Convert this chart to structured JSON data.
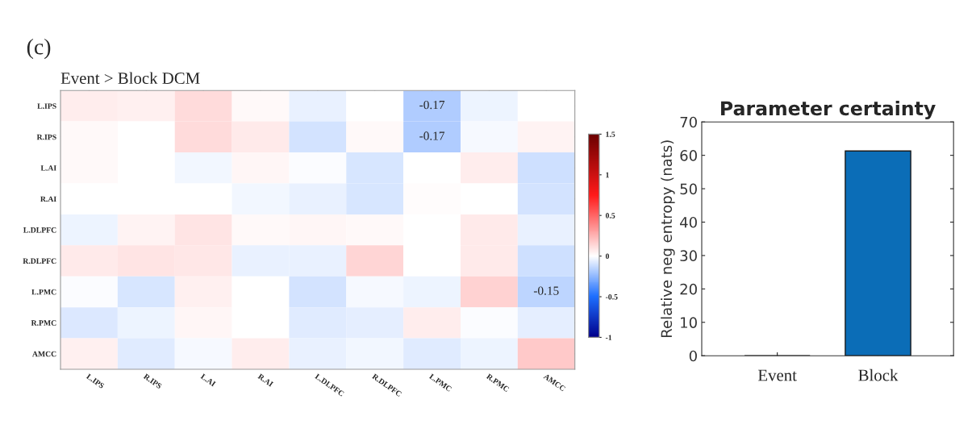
{
  "chart_data": [
    {
      "type": "heatmap",
      "title": "Event > Block DCM",
      "annotations": [
        "(c)"
      ],
      "categories": [
        "L.IPS",
        "R.IPS",
        "L.AI",
        "R.AI",
        "L.DLPFC",
        "R.DLPFC",
        "L.PMC",
        "R.PMC",
        "AMCC"
      ],
      "y_categories": [
        "L.IPS",
        "R.IPS",
        "L.AI",
        "R.AI",
        "L.DLPFC",
        "R.DLPFC",
        "L.PMC",
        "R.PMC",
        "AMCC"
      ],
      "cells": [
        [
          0.06,
          0.05,
          0.12,
          0.02,
          -0.05,
          0,
          -0.17,
          -0.04,
          0
        ],
        [
          0.02,
          0,
          0.12,
          0.07,
          -0.1,
          0.02,
          -0.17,
          -0.02,
          0.04
        ],
        [
          0.02,
          0,
          -0.03,
          0.03,
          -0.01,
          -0.09,
          0,
          0.06,
          -0.11
        ],
        [
          0,
          0,
          0,
          -0.03,
          -0.05,
          -0.09,
          0.01,
          0,
          -0.1
        ],
        [
          -0.04,
          0.04,
          0.09,
          0.02,
          0.03,
          0.02,
          0,
          0.07,
          -0.05
        ],
        [
          0.07,
          0.09,
          0.08,
          -0.05,
          -0.05,
          0.14,
          0,
          0.07,
          -0.11
        ],
        [
          -0.01,
          -0.09,
          0.05,
          0,
          -0.1,
          -0.02,
          -0.04,
          0.15,
          -0.15
        ],
        [
          -0.08,
          -0.04,
          0.03,
          0,
          -0.07,
          -0.06,
          0.06,
          -0.01,
          -0.06
        ],
        [
          0.05,
          -0.07,
          -0.02,
          0.06,
          -0.05,
          -0.03,
          -0.07,
          -0.04,
          0.18
        ]
      ],
      "cell_labels": [
        [
          null,
          null,
          null,
          null,
          null,
          null,
          "-0.17",
          null,
          null
        ],
        [
          null,
          null,
          null,
          null,
          null,
          null,
          "-0.17",
          null,
          null
        ],
        [
          null,
          null,
          null,
          null,
          null,
          null,
          null,
          null,
          null
        ],
        [
          null,
          null,
          null,
          null,
          null,
          null,
          null,
          null,
          null
        ],
        [
          null,
          null,
          null,
          null,
          null,
          null,
          null,
          null,
          null
        ],
        [
          null,
          null,
          null,
          null,
          null,
          null,
          null,
          null,
          null
        ],
        [
          null,
          null,
          null,
          null,
          null,
          null,
          null,
          null,
          "-0.15"
        ],
        [
          null,
          null,
          null,
          null,
          null,
          null,
          null,
          null,
          null
        ],
        [
          null,
          null,
          null,
          null,
          null,
          null,
          null,
          null,
          null
        ]
      ],
      "clim": [
        -1,
        1.5
      ],
      "cticks": [
        -1,
        -0.5,
        0,
        0.5,
        1,
        1.5
      ]
    },
    {
      "type": "bar",
      "title": "Parameter certainty",
      "ylabel": "Relative neg entropy (nats)",
      "categories": [
        "Event",
        "Block"
      ],
      "values": [
        0,
        61.3
      ],
      "color": "#0b6db7",
      "ylim": [
        0,
        70
      ],
      "yticks": [
        0,
        10,
        20,
        30,
        40,
        50,
        60,
        70
      ]
    }
  ]
}
